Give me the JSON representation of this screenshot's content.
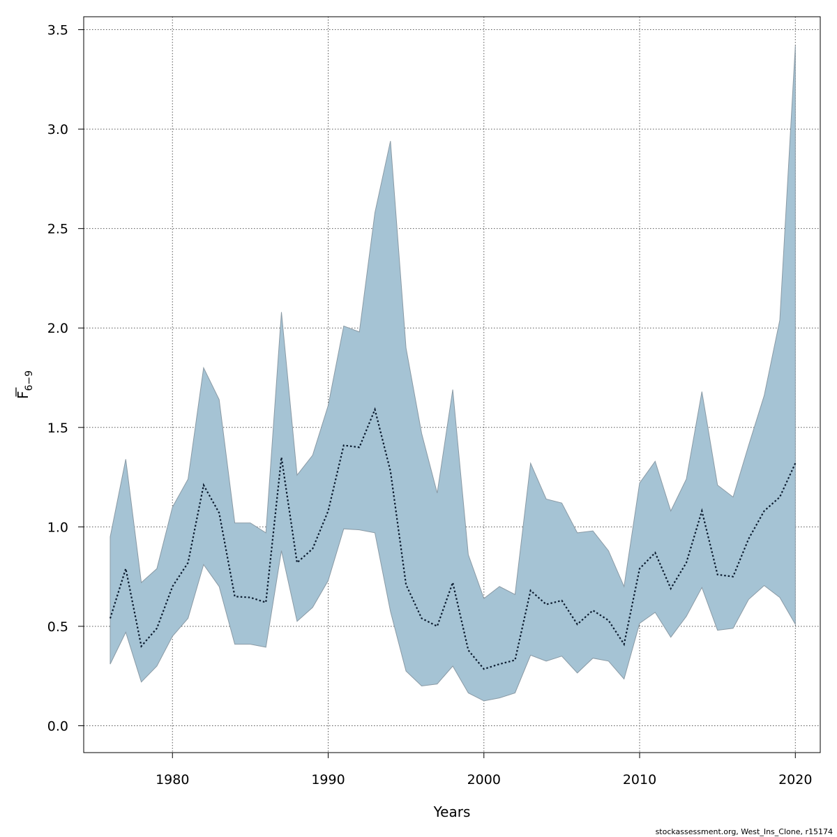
{
  "chart_data": {
    "type": "area",
    "xlabel": "Years",
    "ylabel": "F",
    "ylabel_subscript": "6−9",
    "credit": "stockassessment.org, West_Ins_Clone, r15174",
    "xlim": [
      1974.3,
      2021.6
    ],
    "ylim": [
      -0.135,
      3.565
    ],
    "x_ticks": [
      1980,
      1990,
      2000,
      2010,
      2020
    ],
    "y_ticks": [
      0.0,
      0.5,
      1.0,
      1.5,
      2.0,
      2.5,
      3.0,
      3.5
    ],
    "y_tick_labels": [
      "0.0",
      "0.5",
      "1.0",
      "1.5",
      "2.0",
      "2.5",
      "3.0",
      "3.5"
    ],
    "grid": true,
    "colors": {
      "band": "#a5c3d4",
      "band_edge": "#8a9aa5",
      "line": "#0a1a2e",
      "grid": "#555555"
    },
    "x": [
      1976,
      1977,
      1978,
      1979,
      1980,
      1981,
      1982,
      1983,
      1984,
      1985,
      1986,
      1987,
      1988,
      1989,
      1990,
      1991,
      1992,
      1993,
      1994,
      1995,
      1996,
      1997,
      1998,
      1999,
      2000,
      2001,
      2002,
      2003,
      2004,
      2005,
      2006,
      2007,
      2008,
      2009,
      2010,
      2011,
      2012,
      2013,
      2014,
      2015,
      2016,
      2017,
      2018,
      2019,
      2020
    ],
    "series": [
      {
        "role": "estimate",
        "values": [
          0.54,
          0.79,
          0.4,
          0.49,
          0.7,
          0.82,
          1.21,
          1.07,
          0.65,
          0.645,
          0.62,
          1.35,
          0.82,
          0.89,
          1.08,
          1.41,
          1.4,
          1.59,
          1.28,
          0.71,
          0.54,
          0.5,
          0.72,
          0.38,
          0.285,
          0.31,
          0.33,
          0.68,
          0.61,
          0.63,
          0.51,
          0.58,
          0.53,
          0.41,
          0.79,
          0.87,
          0.69,
          0.82,
          1.08,
          0.76,
          0.75,
          0.94,
          1.08,
          1.15,
          1.32
        ]
      },
      {
        "role": "upper",
        "values": [
          0.95,
          1.34,
          0.72,
          0.79,
          1.1,
          1.24,
          1.8,
          1.64,
          1.02,
          1.02,
          0.97,
          2.08,
          1.26,
          1.36,
          1.61,
          2.01,
          1.98,
          2.58,
          2.94,
          1.9,
          1.47,
          1.17,
          1.69,
          0.86,
          0.64,
          0.7,
          0.66,
          1.32,
          1.14,
          1.12,
          0.97,
          0.98,
          0.88,
          0.7,
          1.22,
          1.33,
          1.08,
          1.24,
          1.68,
          1.21,
          1.15,
          1.41,
          1.66,
          2.04,
          3.42
        ]
      },
      {
        "role": "lower",
        "values": [
          0.31,
          0.47,
          0.22,
          0.3,
          0.45,
          0.54,
          0.81,
          0.7,
          0.41,
          0.41,
          0.395,
          0.88,
          0.525,
          0.595,
          0.73,
          0.99,
          0.985,
          0.97,
          0.575,
          0.275,
          0.2,
          0.21,
          0.3,
          0.165,
          0.125,
          0.14,
          0.165,
          0.355,
          0.325,
          0.35,
          0.265,
          0.34,
          0.325,
          0.235,
          0.515,
          0.57,
          0.445,
          0.55,
          0.695,
          0.48,
          0.49,
          0.635,
          0.705,
          0.645,
          0.51
        ]
      }
    ]
  }
}
